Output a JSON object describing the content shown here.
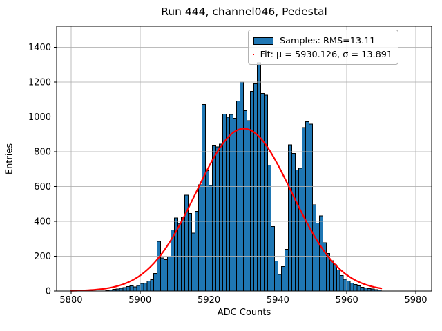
{
  "chart_data": {
    "type": "bar",
    "subtype": "histogram_with_gaussian_fit",
    "title": "Run 444, channel046, Pedestal",
    "xlabel": "ADC Counts",
    "ylabel": "Entries",
    "xlim": [
      5875.8,
      5984.6
    ],
    "ylim": [
      0,
      1520
    ],
    "x_ticks": [
      5880,
      5900,
      5920,
      5940,
      5960,
      5980
    ],
    "y_ticks": [
      0,
      200,
      400,
      600,
      800,
      1000,
      1200,
      1400
    ],
    "grid": true,
    "legend_position": "upper right",
    "bins": {
      "start": 5890,
      "width": 1,
      "counts": [
        3,
        6,
        9,
        12,
        15,
        20,
        26,
        29,
        23,
        32,
        44,
        45,
        57,
        65,
        100,
        285,
        190,
        180,
        195,
        350,
        420,
        388,
        424,
        550,
        445,
        332,
        458,
        610,
        1070,
        690,
        606,
        838,
        828,
        843,
        1015,
        998,
        1013,
        992,
        1090,
        1200,
        1035,
        978,
        1145,
        1190,
        1310,
        1135,
        1125,
        722,
        370,
        172,
        95,
        140,
        240,
        840,
        790,
        695,
        705,
        938,
        972,
        958,
        495,
        390,
        432,
        278,
        215,
        175,
        150,
        120,
        90,
        67,
        57,
        46,
        37,
        30,
        21,
        17,
        13,
        11,
        8,
        5
      ]
    },
    "fit": {
      "mu": 5930.126,
      "sigma": 13.891,
      "amplitude": 932,
      "x_start": 5880,
      "x_end": 5970
    },
    "legend": {
      "entries": [
        {
          "label": "Samples: RMS=13.11",
          "marker": "patch"
        },
        {
          "label": "Fit: μ = 5930.126, σ = 13.891",
          "marker": "line"
        }
      ]
    },
    "colors": {
      "bar_fill": "#1f77b4",
      "bar_edge": "#000000",
      "fit_line": "#ff0000",
      "grid": "#b0b0b0",
      "spine": "#000000",
      "legend_border": "#b3b3b3",
      "text": "#000000"
    }
  }
}
